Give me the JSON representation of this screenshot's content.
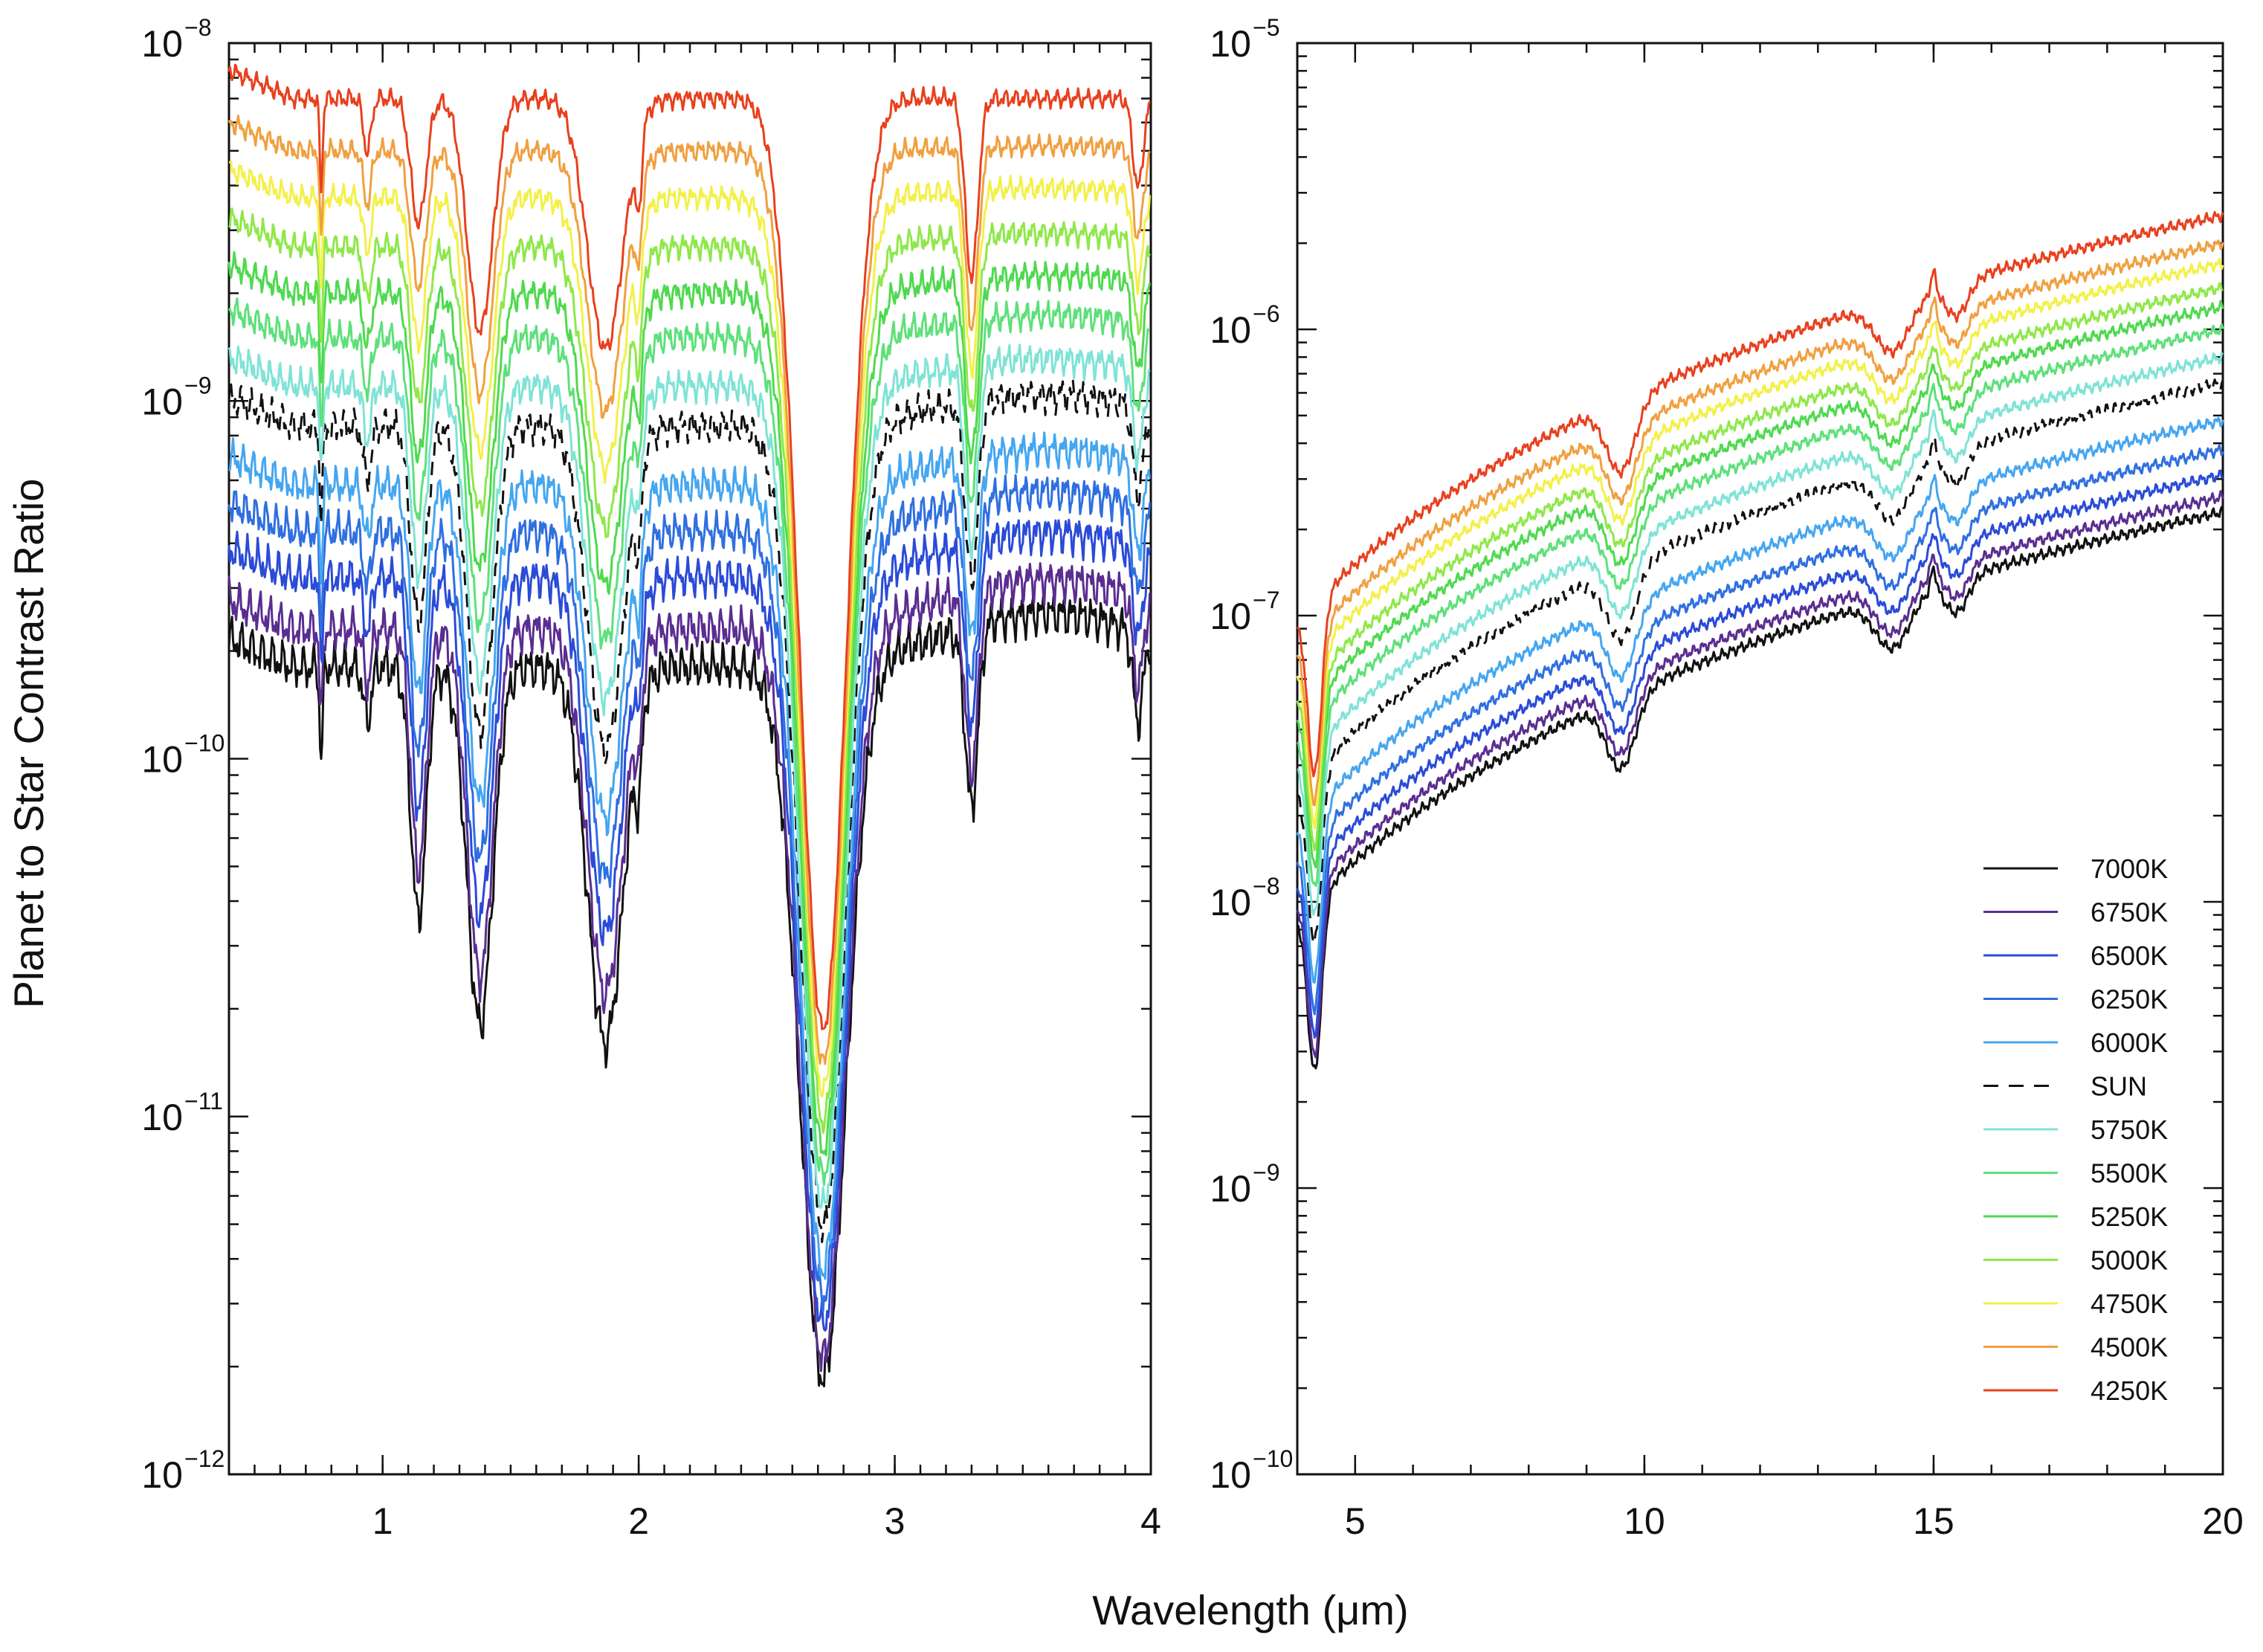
{
  "chart_data": [
    {
      "type": "line",
      "panel": "left",
      "title": "",
      "xlabel": "Wavelength (μm)",
      "ylabel": "Planet to Star Contrast Ratio",
      "yscale": "log",
      "xlim": [
        0.4,
        4.0
      ],
      "ylim_exponent": [
        -12,
        -8
      ],
      "xticks": [
        1,
        2,
        3,
        4
      ],
      "xtick_labels": [
        "1",
        "2",
        "3",
        "4"
      ],
      "yticks_exponent": [
        -12,
        -11,
        -10,
        -9,
        -8
      ],
      "ytick_base": "10",
      "ytick_exponent_labels": [
        "−12",
        "−11",
        "−10",
        "−9",
        "−8"
      ],
      "series": [
        {
          "name": "7000K",
          "y_at_1um": 1.8e-10,
          "continuum_min_at_2.7um": 1.5e-12
        },
        {
          "name": "6750K",
          "y_at_1um": 2.3e-10
        },
        {
          "name": "6500K",
          "y_at_1um": 3.2e-10
        },
        {
          "name": "6250K",
          "y_at_1um": 4.3e-10
        },
        {
          "name": "6000K",
          "y_at_1um": 5.8e-10
        },
        {
          "name": "SUN",
          "y_at_1um": 8.5e-10
        },
        {
          "name": "5750K",
          "y_at_1um": 1.1e-09
        },
        {
          "name": "5500K",
          "y_at_1um": 1.5e-09
        },
        {
          "name": "5250K",
          "y_at_1um": 2e-09
        },
        {
          "name": "5000K",
          "y_at_1um": 2.7e-09
        },
        {
          "name": "4750K",
          "y_at_1um": 3.7e-09
        },
        {
          "name": "4500K",
          "y_at_1um": 5e-09
        },
        {
          "name": "4250K",
          "y_at_1um": 7e-09
        }
      ]
    },
    {
      "type": "line",
      "panel": "right",
      "title": "",
      "xlabel": "Wavelength (μm)",
      "yscale": "log",
      "xlim": [
        4.0,
        20.0
      ],
      "ylim_exponent": [
        -10,
        -5
      ],
      "xticks": [
        5,
        10,
        15,
        20
      ],
      "xtick_labels": [
        "5",
        "10",
        "15",
        "20"
      ],
      "yticks_exponent": [
        -10,
        -9,
        -8,
        -7,
        -6,
        -5
      ],
      "ytick_base": "10",
      "ytick_exponent_labels": [
        "−10",
        "−9",
        "−8",
        "−7",
        "−6",
        "−5"
      ],
      "series": [
        {
          "name": "7000K",
          "y_at_20um": 2.3e-07
        },
        {
          "name": "6750K",
          "y_at_20um": 2.6e-07
        },
        {
          "name": "6500K",
          "y_at_20um": 3.1e-07
        },
        {
          "name": "6250K",
          "y_at_20um": 3.8e-07
        },
        {
          "name": "6000K",
          "y_at_20um": 4.8e-07
        },
        {
          "name": "SUN",
          "y_at_20um": 6.5e-07
        },
        {
          "name": "5750K",
          "y_at_20um": 8e-07
        },
        {
          "name": "5500K",
          "y_at_20um": 1e-06
        },
        {
          "name": "5250K",
          "y_at_20um": 1.2e-06
        },
        {
          "name": "5000K",
          "y_at_20um": 1.4e-06
        },
        {
          "name": "4750K",
          "y_at_20um": 1.7e-06
        },
        {
          "name": "4500K",
          "y_at_20um": 2e-06
        },
        {
          "name": "4250K",
          "y_at_20um": 2.5e-06
        }
      ]
    }
  ],
  "legend": {
    "placement": "lower-right of right panel",
    "entries": [
      {
        "label": "7000K",
        "color": "#111111",
        "dash": false
      },
      {
        "label": "6750K",
        "color": "#5a2d91",
        "dash": false
      },
      {
        "label": "6500K",
        "color": "#2a4bd7",
        "dash": false
      },
      {
        "label": "6250K",
        "color": "#2f6fe0",
        "dash": false
      },
      {
        "label": "6000K",
        "color": "#45a6f0",
        "dash": false
      },
      {
        "label": "SUN",
        "color": "#111111",
        "dash": true
      },
      {
        "label": "5750K",
        "color": "#7fe3d6",
        "dash": false
      },
      {
        "label": "5500K",
        "color": "#5ee07a",
        "dash": false
      },
      {
        "label": "5250K",
        "color": "#4fd94f",
        "dash": false
      },
      {
        "label": "5000K",
        "color": "#8fe84a",
        "dash": false
      },
      {
        "label": "4750K",
        "color": "#f3f04a",
        "dash": false
      },
      {
        "label": "4500K",
        "color": "#f0a040",
        "dash": false
      },
      {
        "label": "4250K",
        "color": "#e8401e",
        "dash": false
      }
    ]
  },
  "shared_xlabel": "Wavelength (μm)",
  "shared_ylabel": "Planet to Star Contrast Ratio"
}
